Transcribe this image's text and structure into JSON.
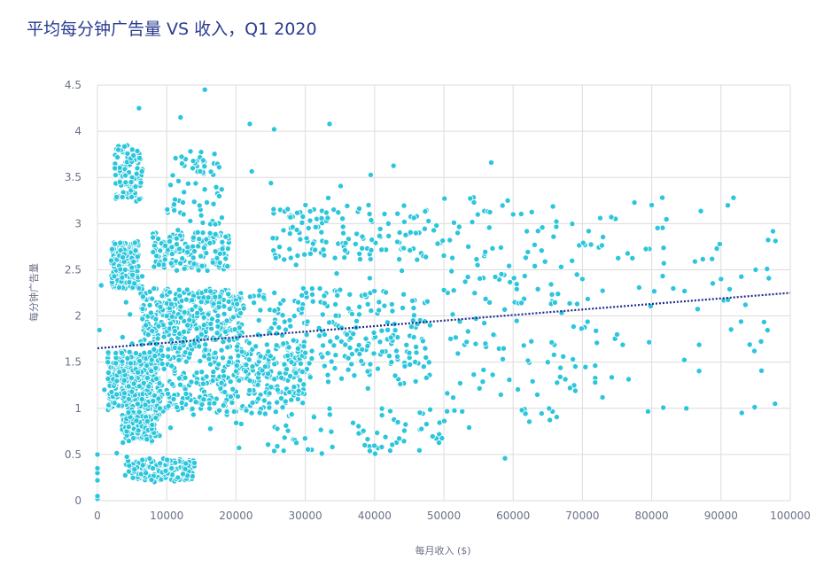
{
  "title": "平均每分钟广告量 VS 收入，Q1 2020",
  "colors": {
    "points": "#2cc6dc",
    "point_stroke": "#ffffff",
    "trend": "#1e2a8a",
    "grid": "#dcdcdc",
    "title": "#2a3b8f"
  },
  "chart_data": {
    "type": "scatter",
    "title": "平均每分钟广告量 VS 收入，Q1 2020",
    "xlabel": "每月收入 ($)",
    "ylabel": "每分钟广告量",
    "xlim": [
      0,
      100000
    ],
    "ylim": [
      0,
      4.5
    ],
    "x_ticks": [
      "0",
      "10000",
      "20000",
      "30000",
      "40000",
      "50000",
      "60000",
      "70000",
      "80000",
      "90000",
      "100000"
    ],
    "y_ticks": [
      "0",
      "0.5",
      "1",
      "1.5",
      "2",
      "2.5",
      "3",
      "3.5",
      "4",
      "4.5"
    ],
    "grid": true,
    "trendline": {
      "style": "dotted",
      "x": [
        0,
        100000
      ],
      "y": [
        1.65,
        2.25
      ]
    },
    "series": [
      {
        "point_count": 2400,
        "x": [
          1000,
          1500,
          2000,
          2500,
          3000,
          3500,
          4000,
          4500,
          5000,
          5500,
          6000,
          7000,
          8000,
          9000,
          10000,
          11000,
          12000,
          13000,
          14000,
          15000,
          16000,
          17000,
          18000,
          19000,
          20000,
          22000,
          24000,
          26000,
          28000,
          30000,
          33000,
          36000,
          39000,
          42000,
          45000,
          48000,
          52000,
          56000,
          60000,
          65000,
          70000,
          75000,
          80000,
          85000,
          90000,
          95000
        ],
        "y": [
          1.2,
          1.5,
          2.6,
          3.6,
          3.8,
          1.6,
          2.5,
          0.8,
          1.7,
          3.4,
          2.3,
          0.3,
          0.35,
          1.0,
          2.0,
          1.1,
          2.1,
          1.9,
          2.7,
          1.8,
          2.2,
          1.6,
          2.8,
          1.5,
          1.4,
          1.3,
          2.2,
          1.2,
          1.5,
          1.6,
          2.8,
          1.8,
          1.4,
          3.0,
          1.6,
          1.9,
          2.9,
          1.7,
          3.1,
          1.5,
          2.4,
          1.8,
          3.2,
          1.0,
          2.4,
          2.5
        ],
        "outliers": [
          {
            "x": 15500,
            "y": 4.45
          },
          {
            "x": 6000,
            "y": 4.25
          },
          {
            "x": 12000,
            "y": 4.15
          },
          {
            "x": 33500,
            "y": 4.08
          },
          {
            "x": 22000,
            "y": 4.08
          },
          {
            "x": 25500,
            "y": 4.02
          },
          {
            "x": 0,
            "y": 0.02
          },
          {
            "x": 91800,
            "y": 3.28
          },
          {
            "x": 97800,
            "y": 1.05
          },
          {
            "x": 93000,
            "y": 0.95
          }
        ]
      }
    ]
  }
}
